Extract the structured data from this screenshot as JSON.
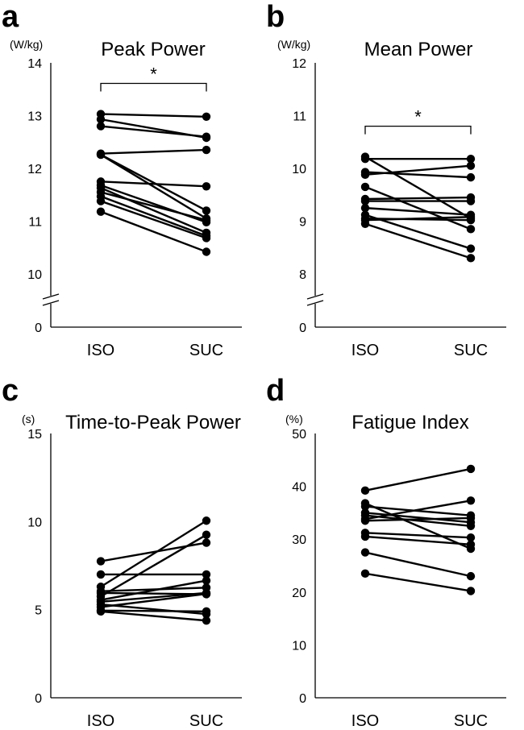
{
  "figure": {
    "panels": [
      {
        "letter": "a",
        "title": "Peak Power",
        "unit": "(W/kg)"
      },
      {
        "letter": "b",
        "title": "Mean Power",
        "unit": "(W/kg)"
      },
      {
        "letter": "c",
        "title": "Time-to-Peak Power",
        "unit": "(s)"
      },
      {
        "letter": "d",
        "title": "Fatigue Index",
        "unit": "(%)"
      }
    ]
  },
  "chart_data": [
    {
      "type": "line",
      "panel": "a",
      "title": "Peak Power",
      "ylabel": "(W/kg)",
      "categories": [
        "ISO",
        "SUC"
      ],
      "ylim": [
        10,
        14
      ],
      "axis_break": true,
      "yticks": [
        "14",
        "13",
        "12",
        "11",
        "10"
      ],
      "zero_tick": "0",
      "significance": "*",
      "pairs": [
        [
          13.03,
          12.98
        ],
        [
          12.93,
          12.58
        ],
        [
          12.8,
          12.6
        ],
        [
          12.28,
          12.35
        ],
        [
          12.26,
          11.2
        ],
        [
          12.26,
          11.05
        ],
        [
          11.75,
          11.66
        ],
        [
          11.68,
          10.98
        ],
        [
          11.63,
          10.78
        ],
        [
          11.55,
          11.02
        ],
        [
          11.47,
          10.72
        ],
        [
          11.38,
          10.68
        ],
        [
          11.18,
          10.42
        ]
      ]
    },
    {
      "type": "line",
      "panel": "b",
      "title": "Mean Power",
      "ylabel": "(W/kg)",
      "categories": [
        "ISO",
        "SUC"
      ],
      "ylim": [
        8,
        12
      ],
      "axis_break": true,
      "yticks": [
        "12",
        "11",
        "10",
        "9",
        "8"
      ],
      "zero_tick": "0",
      "significance": "*",
      "pairs": [
        [
          10.22,
          9.05
        ],
        [
          10.18,
          10.18
        ],
        [
          9.93,
          9.83
        ],
        [
          9.88,
          10.05
        ],
        [
          9.65,
          8.85
        ],
        [
          9.42,
          9.45
        ],
        [
          9.38,
          9.38
        ],
        [
          9.25,
          9.12
        ],
        [
          9.12,
          8.48
        ],
        [
          9.05,
          9.02
        ],
        [
          9.02,
          9.08
        ],
        [
          8.95,
          8.3
        ]
      ]
    },
    {
      "type": "line",
      "panel": "c",
      "title": "Time-to-Peak Power",
      "ylabel": "(s)",
      "categories": [
        "ISO",
        "SUC"
      ],
      "ylim": [
        0,
        15
      ],
      "yticks": [
        "15",
        "10",
        "5",
        "0"
      ],
      "pairs": [
        [
          7.75,
          8.8
        ],
        [
          7.0,
          7.0
        ],
        [
          6.3,
          10.05
        ],
        [
          6.05,
          6.25
        ],
        [
          5.95,
          5.88
        ],
        [
          5.75,
          9.25
        ],
        [
          5.55,
          6.65
        ],
        [
          5.45,
          5.95
        ],
        [
          5.3,
          4.75
        ],
        [
          5.15,
          5.9
        ],
        [
          4.95,
          4.9
        ],
        [
          4.9,
          4.38
        ]
      ]
    },
    {
      "type": "line",
      "panel": "d",
      "title": "Fatigue Index",
      "ylabel": "(%)",
      "categories": [
        "ISO",
        "SUC"
      ],
      "ylim": [
        0,
        50
      ],
      "yticks": [
        "50",
        "40",
        "30",
        "20",
        "10",
        "0"
      ],
      "pairs": [
        [
          39.2,
          43.3
        ],
        [
          36.8,
          28.2
        ],
        [
          36.2,
          34.5
        ],
        [
          35.0,
          33.2
        ],
        [
          34.5,
          32.5
        ],
        [
          33.8,
          37.3
        ],
        [
          33.5,
          34.0
        ],
        [
          31.2,
          30.3
        ],
        [
          30.5,
          29.0
        ],
        [
          27.5,
          23.0
        ],
        [
          23.5,
          20.2
        ]
      ]
    }
  ]
}
